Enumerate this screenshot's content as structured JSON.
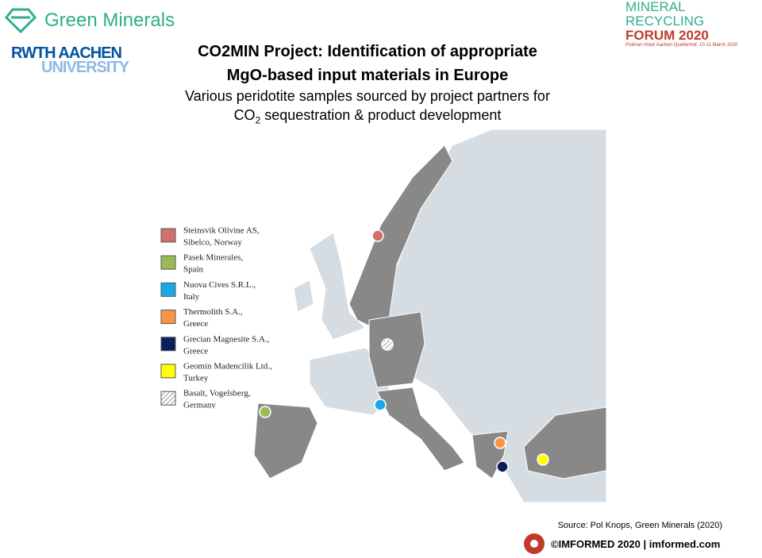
{
  "header": {
    "left_logo": "Green Minerals",
    "university": [
      "RWTH AACHEN",
      "UNIVERSITY"
    ],
    "forum": [
      "MINERAL RECYCLING",
      "FORUM 2020"
    ],
    "forum_venue": "Pullman Hotel Aachen Quellenhof, 10-11 March 2020"
  },
  "title": [
    "CO2MIN Project: Identification of appropriate",
    "MgO-based input materials in Europe"
  ],
  "subtitle": {
    "line1": "Various peridotite samples sourced by project partners for",
    "line2": [
      "CO",
      "2",
      " sequestration & product development"
    ]
  },
  "legend": [
    {
      "lines": [
        "Steinsvik Olivine AS,",
        "Sibelco, Norway"
      ],
      "color": "#d0706a"
    },
    {
      "lines": [
        "Pasek Minerales,",
        "Spain"
      ],
      "color": "#9bbb59"
    },
    {
      "lines": [
        "Nuova Cives S.R.L.,",
        "Italy"
      ],
      "color": "#1aa8e8"
    },
    {
      "lines": [
        "Thermolith S.A.,",
        "Greece"
      ],
      "color": "#f79646"
    },
    {
      "lines": [
        "Grecian Magnesite S.A.,",
        "Greece"
      ],
      "color": "#0b1f5c"
    },
    {
      "lines": [
        "Geomin Madencilik Ltd.,",
        "Turkey"
      ],
      "color": "#ffff00"
    },
    {
      "lines": [
        "Basalt, Vogelsberg,",
        "Germany"
      ],
      "color": "hatch"
    }
  ],
  "source": "Source: Pol Knops, Green Minerals (2020)",
  "footer": "©IMFORMED 2020  | imformed.com"
}
